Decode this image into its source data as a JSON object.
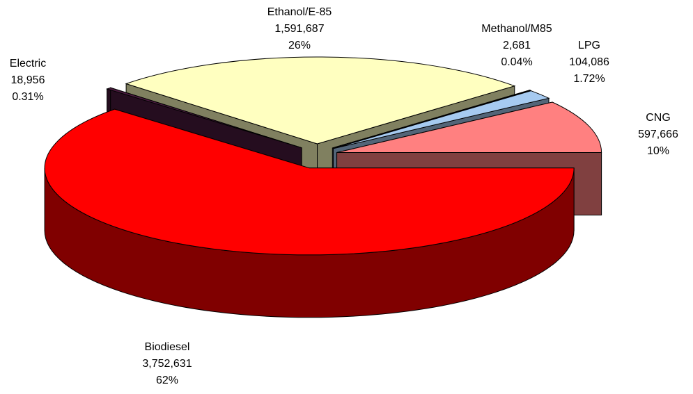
{
  "chart_data": {
    "type": "pie3d",
    "categories": [
      "Biodiesel",
      "Electric",
      "Ethanol/E-85",
      "Methanol/M85",
      "LPG",
      "CNG"
    ],
    "values": [
      3752631,
      18956,
      1591687,
      2681,
      104086,
      597666
    ],
    "value_labels": [
      "3,752,631",
      "18,956",
      "1,591,687",
      "2,681",
      "104,086",
      "597,666"
    ],
    "percents": [
      62,
      0.31,
      26,
      0.04,
      1.72,
      10
    ],
    "percent_labels": [
      "62%",
      "0.31%",
      "26%",
      "0.04%",
      "1.72%",
      "10%"
    ],
    "colors": [
      "#ff0000",
      "#4a1a3e",
      "#ffffc0",
      "#ccffff",
      "#a6caf0",
      "#ff8080"
    ]
  }
}
